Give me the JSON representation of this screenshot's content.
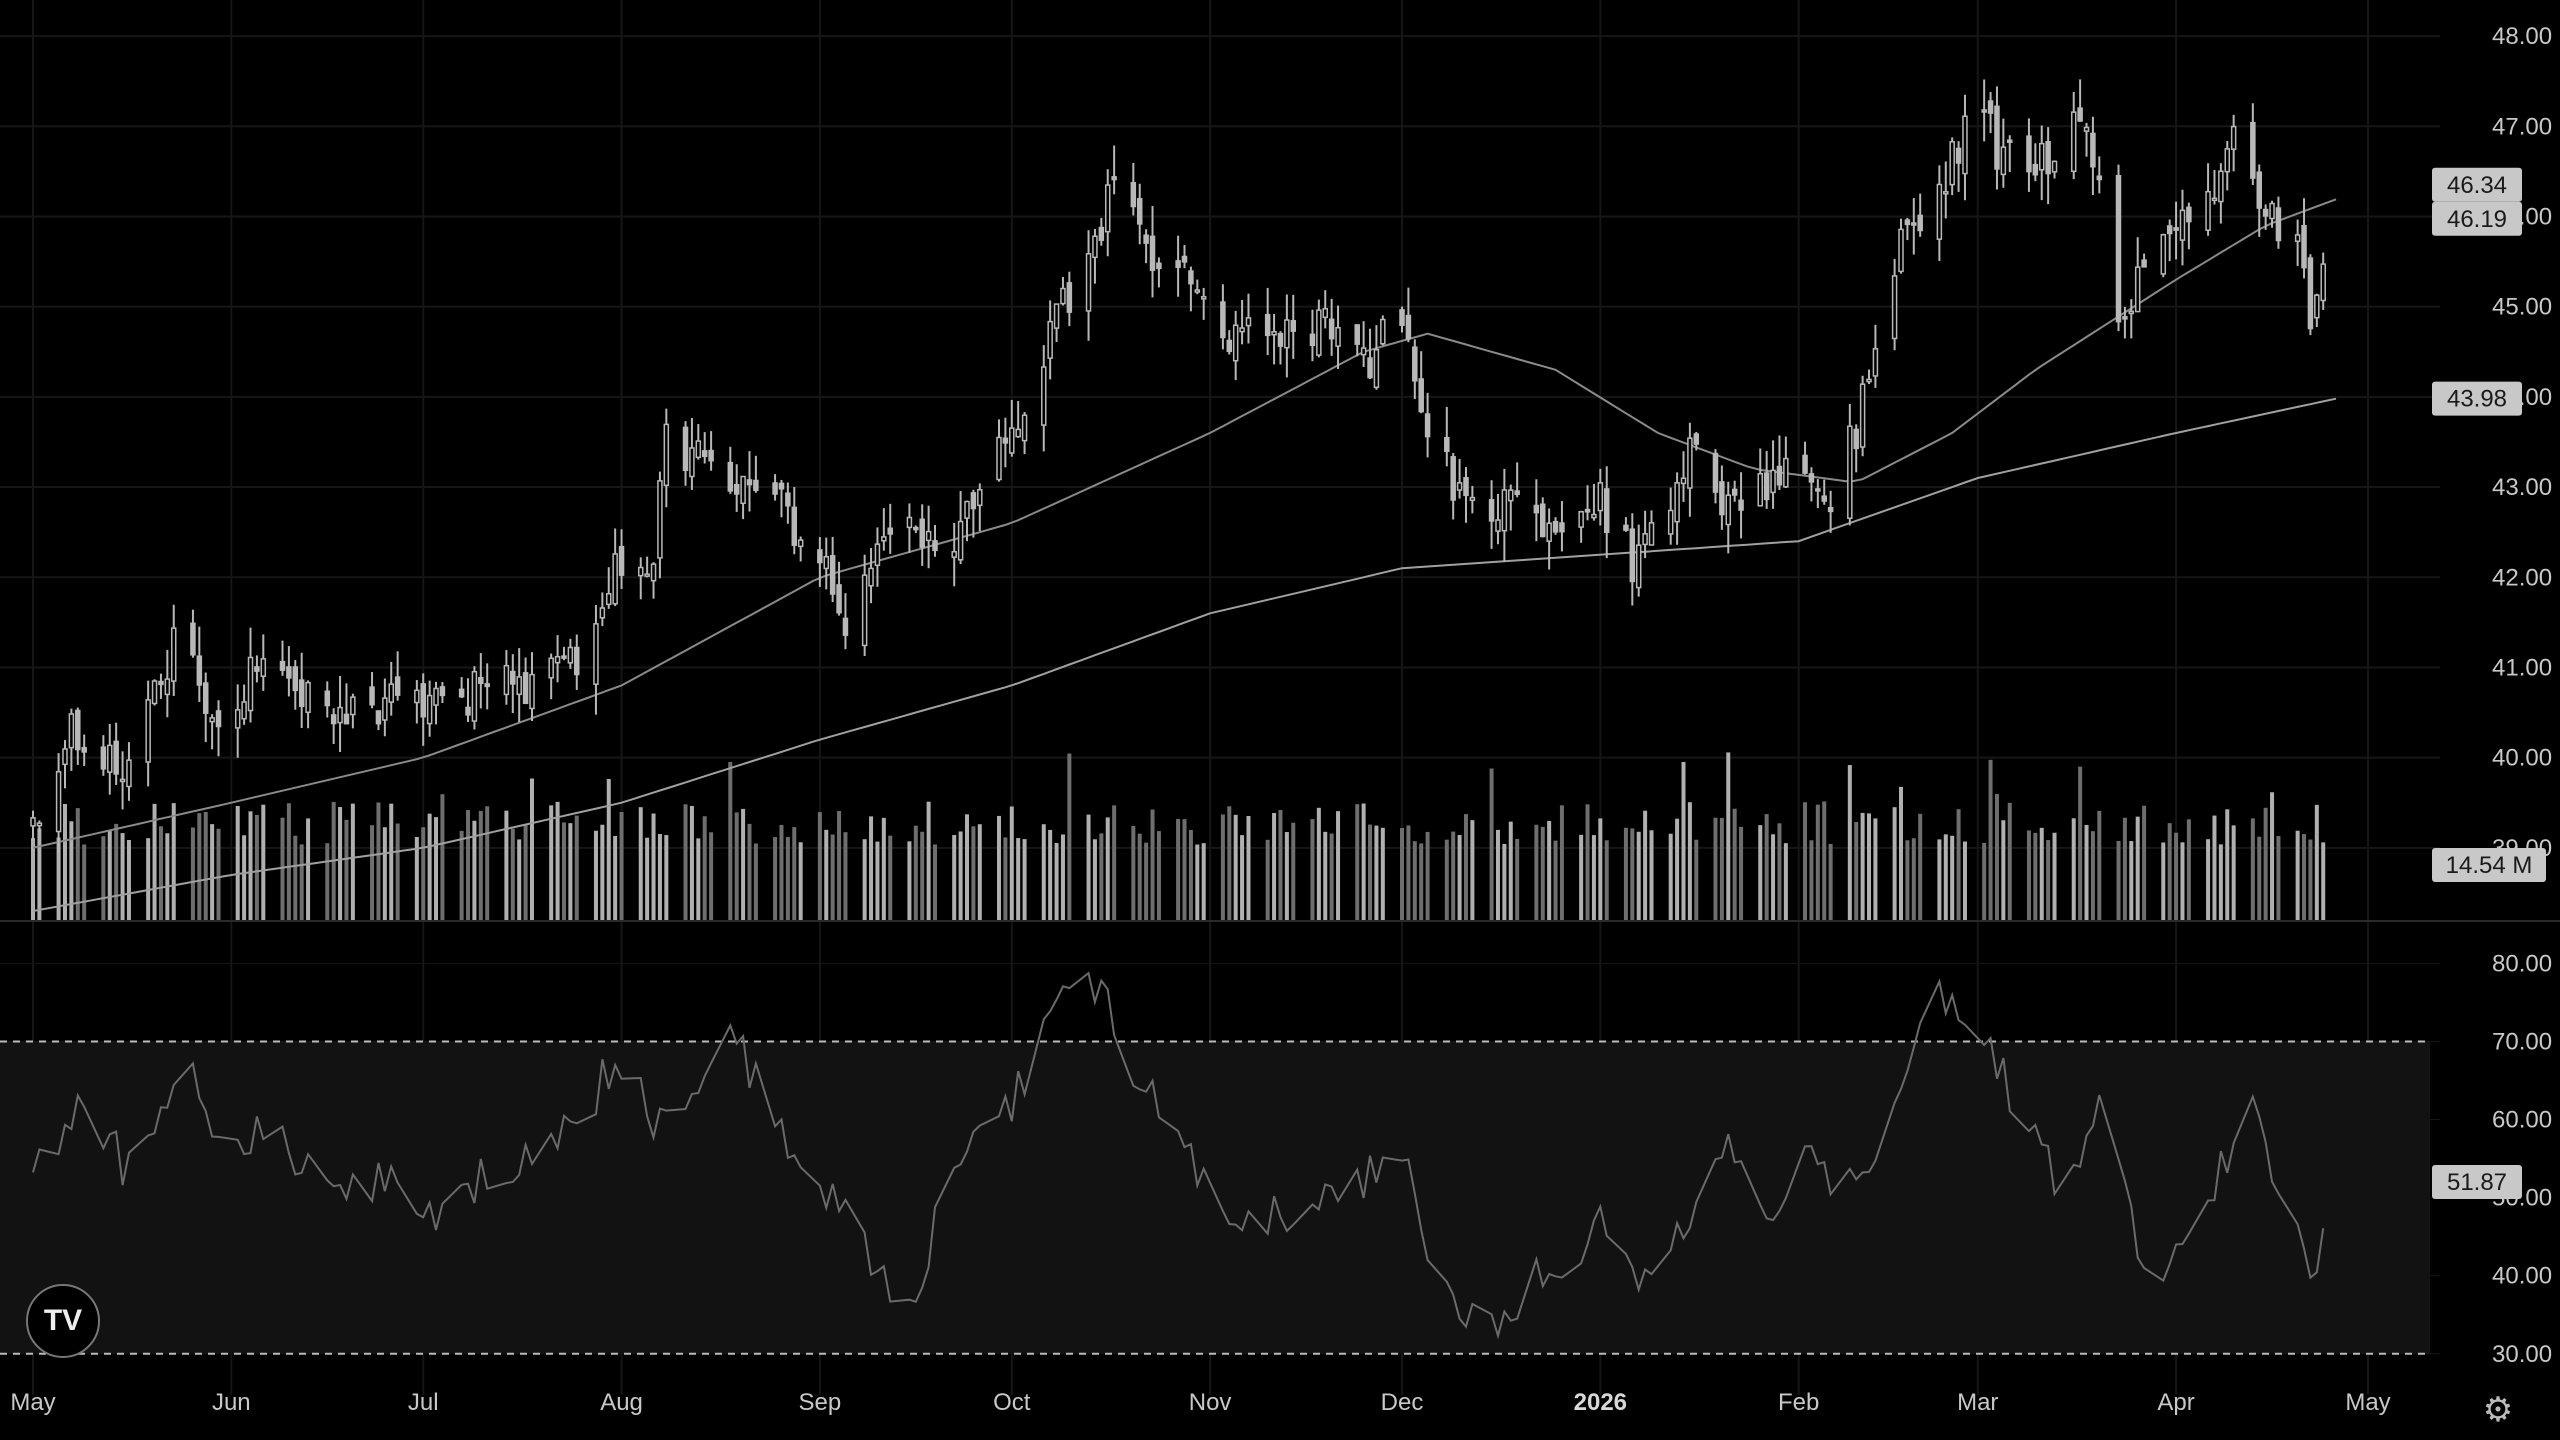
{
  "chart_data": {
    "type": "candlestick",
    "x_axis_labels": [
      {
        "label": "May",
        "date": "2025-05-01"
      },
      {
        "label": "Jun",
        "date": "2025-06-01"
      },
      {
        "label": "Jul",
        "date": "2025-07-01"
      },
      {
        "label": "Aug",
        "date": "2025-08-01"
      },
      {
        "label": "Sep",
        "date": "2025-09-01"
      },
      {
        "label": "Oct",
        "date": "2025-10-01"
      },
      {
        "label": "Nov",
        "date": "2025-11-01"
      },
      {
        "label": "Dec",
        "date": "2025-12-01"
      },
      {
        "label": "2026",
        "date": "2026-01-01",
        "bold": true
      },
      {
        "label": "Feb",
        "date": "2026-02-01"
      },
      {
        "label": "Mar",
        "date": "2026-03-01"
      },
      {
        "label": "Apr",
        "date": "2026-04-01"
      },
      {
        "label": "May",
        "date": "2026-05-01"
      }
    ],
    "price_axis": {
      "ylim": [
        38.2,
        48.4
      ],
      "ticks": [
        "48.00",
        "47.00",
        "46.00",
        "45.00",
        "44.00",
        "43.00",
        "42.00",
        "41.00",
        "40.00",
        "39.00"
      ]
    },
    "rsi_axis": {
      "ylim": [
        26,
        83
      ],
      "ticks": [
        "80.00",
        "70.00",
        "60.00",
        "50.00",
        "40.00",
        "30.00"
      ],
      "bands": [
        70,
        30
      ]
    },
    "price_waypoints": [
      [
        "2025-05-01",
        39.2
      ],
      [
        "2025-05-07",
        40.3
      ],
      [
        "2025-05-15",
        39.9
      ],
      [
        "2025-05-23",
        41.2
      ],
      [
        "2025-05-30",
        40.5
      ],
      [
        "2025-06-08",
        41.2
      ],
      [
        "2025-06-12",
        40.6
      ],
      [
        "2025-06-20",
        40.5
      ],
      [
        "2025-06-27",
        40.7
      ],
      [
        "2025-07-05",
        40.5
      ],
      [
        "2025-07-12",
        40.9
      ],
      [
        "2025-07-19",
        40.8
      ],
      [
        "2025-07-26",
        41.2
      ],
      [
        "2025-08-01",
        42.2
      ],
      [
        "2025-08-05",
        41.8
      ],
      [
        "2025-08-08",
        43.5
      ],
      [
        "2025-08-15",
        43.3
      ],
      [
        "2025-08-22",
        43.0
      ],
      [
        "2025-08-31",
        42.4
      ],
      [
        "2025-09-05",
        41.5
      ],
      [
        "2025-09-12",
        42.6
      ],
      [
        "2025-09-20",
        42.2
      ],
      [
        "2025-09-28",
        43.2
      ],
      [
        "2025-10-03",
        44.0
      ],
      [
        "2025-10-11",
        45.3
      ],
      [
        "2025-10-17",
        46.3
      ],
      [
        "2025-10-21",
        45.8
      ],
      [
        "2025-10-29",
        45.2
      ],
      [
        "2025-11-04",
        44.6
      ],
      [
        "2025-11-10",
        44.8
      ],
      [
        "2025-11-18",
        44.8
      ],
      [
        "2025-11-25",
        44.3
      ],
      [
        "2025-11-30",
        45.0
      ],
      [
        "2025-12-05",
        43.6
      ],
      [
        "2025-12-11",
        42.7
      ],
      [
        "2025-12-18",
        42.9
      ],
      [
        "2025-12-25",
        42.5
      ],
      [
        "2026-01-01",
        42.8
      ],
      [
        "2026-01-06",
        42.2
      ],
      [
        "2026-01-10",
        42.6
      ],
      [
        "2026-01-15",
        43.3
      ],
      [
        "2026-01-22",
        42.8
      ],
      [
        "2026-01-30",
        43.3
      ],
      [
        "2026-02-05",
        42.8
      ],
      [
        "2026-02-10",
        43.6
      ],
      [
        "2026-02-16",
        45.5
      ],
      [
        "2026-02-23",
        46.3
      ],
      [
        "2026-03-01",
        47.3
      ],
      [
        "2026-03-05",
        46.6
      ],
      [
        "2026-03-12",
        46.7
      ],
      [
        "2026-03-18",
        47.1
      ],
      [
        "2026-03-23",
        44.8
      ],
      [
        "2026-03-29",
        45.6
      ],
      [
        "2026-04-05",
        46.0
      ],
      [
        "2026-04-10",
        46.8
      ],
      [
        "2026-04-15",
        46.1
      ],
      [
        "2026-04-20",
        45.6
      ],
      [
        "2026-04-22",
        45.0
      ],
      [
        "2026-04-26",
        46.34
      ]
    ],
    "ma_fast_waypoints": [
      [
        "2025-05-01",
        39.0
      ],
      [
        "2025-06-01",
        39.5
      ],
      [
        "2025-07-01",
        40.0
      ],
      [
        "2025-08-01",
        40.8
      ],
      [
        "2025-09-01",
        42.0
      ],
      [
        "2025-10-01",
        42.6
      ],
      [
        "2025-11-01",
        43.6
      ],
      [
        "2025-11-25",
        44.5
      ],
      [
        "2025-12-05",
        44.7
      ],
      [
        "2025-12-25",
        44.3
      ],
      [
        "2026-01-10",
        43.6
      ],
      [
        "2026-01-25",
        43.2
      ],
      [
        "2026-02-10",
        43.05
      ],
      [
        "2026-02-25",
        43.6
      ],
      [
        "2026-03-10",
        44.3
      ],
      [
        "2026-04-01",
        45.3
      ],
      [
        "2026-04-15",
        45.9
      ],
      [
        "2026-04-26",
        46.19
      ]
    ],
    "ma_slow_waypoints": [
      [
        "2025-05-01",
        38.3
      ],
      [
        "2025-06-01",
        38.7
      ],
      [
        "2025-07-01",
        39.0
      ],
      [
        "2025-08-01",
        39.5
      ],
      [
        "2025-09-01",
        40.2
      ],
      [
        "2025-10-01",
        40.8
      ],
      [
        "2025-11-01",
        41.6
      ],
      [
        "2025-12-01",
        42.1
      ],
      [
        "2026-01-01",
        42.25
      ],
      [
        "2026-02-01",
        42.4
      ],
      [
        "2026-03-01",
        43.1
      ],
      [
        "2026-04-01",
        43.6
      ],
      [
        "2026-04-26",
        43.98
      ]
    ],
    "rsi_waypoints": [
      [
        "2025-05-01",
        55
      ],
      [
        "2025-05-10",
        62
      ],
      [
        "2025-05-16",
        53
      ],
      [
        "2025-05-24",
        68
      ],
      [
        "2025-06-01",
        55
      ],
      [
        "2025-06-08",
        60
      ],
      [
        "2025-06-15",
        50
      ],
      [
        "2025-06-25",
        53
      ],
      [
        "2025-07-03",
        47
      ],
      [
        "2025-07-10",
        52
      ],
      [
        "2025-07-20",
        55
      ],
      [
        "2025-08-01",
        68
      ],
      [
        "2025-08-06",
        60
      ],
      [
        "2025-08-14",
        66
      ],
      [
        "2025-08-17",
        73
      ],
      [
        "2025-08-25",
        60
      ],
      [
        "2025-09-05",
        48
      ],
      [
        "2025-09-15",
        35
      ],
      [
        "2025-09-22",
        55
      ],
      [
        "2025-09-30",
        60
      ],
      [
        "2025-10-08",
        75
      ],
      [
        "2025-10-14",
        78
      ],
      [
        "2025-10-18",
        70
      ],
      [
        "2025-10-24",
        62
      ],
      [
        "2025-11-01",
        50
      ],
      [
        "2025-11-10",
        47
      ],
      [
        "2025-11-20",
        50
      ],
      [
        "2025-12-01",
        55
      ],
      [
        "2025-12-07",
        38
      ],
      [
        "2025-12-14",
        33
      ],
      [
        "2025-12-22",
        40
      ],
      [
        "2026-01-01",
        46
      ],
      [
        "2026-01-07",
        38
      ],
      [
        "2026-01-14",
        47
      ],
      [
        "2026-01-20",
        57
      ],
      [
        "2026-01-27",
        48
      ],
      [
        "2026-02-03",
        55
      ],
      [
        "2026-02-10",
        50
      ],
      [
        "2026-02-17",
        65
      ],
      [
        "2026-02-22",
        77
      ],
      [
        "2026-03-01",
        73
      ],
      [
        "2026-03-08",
        60
      ],
      [
        "2026-03-15",
        50
      ],
      [
        "2026-03-21",
        63
      ],
      [
        "2026-03-27",
        38
      ],
      [
        "2026-04-05",
        47
      ],
      [
        "2026-04-12",
        62
      ],
      [
        "2026-04-20",
        47
      ],
      [
        "2026-04-22",
        38
      ],
      [
        "2026-04-26",
        51.87
      ]
    ],
    "volume_ylim": [
      0,
      24
    ],
    "volume_seed": 7,
    "last_values": {
      "price": "46.34",
      "ma_fast": "46.19",
      "ma_slow": "43.98",
      "volume": "14.54 M",
      "rsi": "51.87"
    },
    "colors": {
      "background": "#000000",
      "candle": "#b8b8b8",
      "ma_fast": "#8a8a8a",
      "ma_slow": "#a0a0a0",
      "volume_bar": "#9a9a9a",
      "rsi_line": "#6a6a6a",
      "rsi_band": "#121212",
      "grid": "#161616",
      "badge": "#c8c8c8"
    },
    "grid": true
  },
  "ui": {
    "logo_text": "TV",
    "settings_icon": "gear-icon"
  }
}
